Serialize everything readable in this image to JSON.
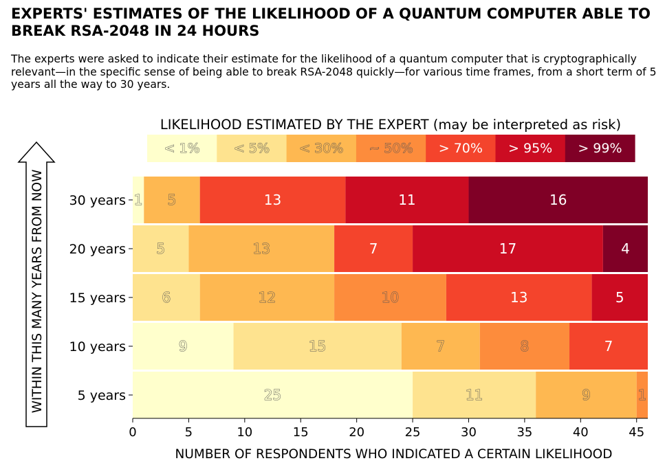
{
  "title": "EXPERTS' ESTIMATES OF THE LIKELIHOOD OF A QUANTUM COMPUTER ABLE TO BREAK RSA-2048 IN 24 HOURS",
  "subtitle": "The experts were asked to indicate their estimate for the likelihood of a quantum computer that is cryptographically relevant—in the specific sense of being able to break RSA-2048 quickly—for various time frames, from a short term of 5 years all the way to 30 years.",
  "chart_data": {
    "type": "bar",
    "orientation": "horizontal",
    "stacked": true,
    "legend_title": "LIKELIHOOD ESTIMATED BY THE EXPERT (may be interpreted as risk)",
    "legend_placement": "top",
    "categories": [
      "5 years",
      "10 years",
      "15 years",
      "20 years",
      "30 years"
    ],
    "xlabel": "NUMBER OF RESPONDENTS WHO INDICATED A CERTAIN LIKELIHOOD",
    "ylabel": "WITHIN THIS MANY YEARS FROM NOW",
    "xlim": [
      0,
      46
    ],
    "xticks": [
      0,
      5,
      10,
      15,
      20,
      25,
      30,
      35,
      40,
      45
    ],
    "grid": false,
    "series": [
      {
        "name": "< 1%",
        "color": "#ffffcc",
        "values": [
          25,
          9,
          0,
          0,
          1
        ]
      },
      {
        "name": "< 5%",
        "color": "#fee38f",
        "values": [
          11,
          15,
          6,
          5,
          0
        ]
      },
      {
        "name": "< 30%",
        "color": "#feb851",
        "values": [
          9,
          7,
          12,
          13,
          5
        ]
      },
      {
        "name": "~ 50%",
        "color": "#fd8c3c",
        "values": [
          1,
          8,
          10,
          0,
          0
        ]
      },
      {
        "name": "> 70%",
        "color": "#f4442c",
        "values": [
          0,
          7,
          13,
          7,
          13
        ]
      },
      {
        "name": "> 95%",
        "color": "#cc0c22",
        "values": [
          0,
          0,
          5,
          17,
          11
        ]
      },
      {
        "name": "> 99%",
        "color": "#800026",
        "values": [
          0,
          0,
          0,
          4,
          16
        ]
      }
    ]
  }
}
